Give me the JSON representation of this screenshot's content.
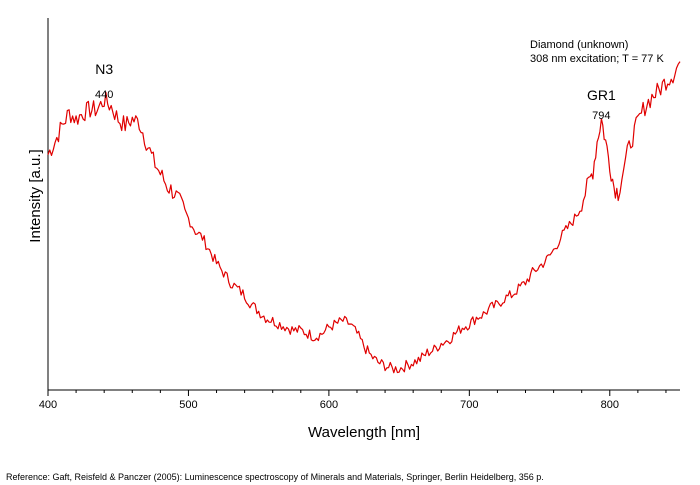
{
  "chart_data": {
    "type": "line",
    "title": "",
    "info_lines": [
      "Diamond (unknown)",
      "308 nm excitation; T = 77 K"
    ],
    "xlabel": "Wavelength [nm]",
    "ylabel": "Intensity [a.u.]",
    "xlim": [
      400,
      850
    ],
    "ylim": [
      0,
      100
    ],
    "x_ticks": [
      400,
      500,
      600,
      700,
      800
    ],
    "grid": false,
    "y_tick_labels": false,
    "series": [
      {
        "color": "#e00000",
        "x": [
          400,
          405,
          410,
          415,
          420,
          425,
          430,
          435,
          440,
          445,
          450,
          455,
          460,
          465,
          470,
          475,
          480,
          485,
          490,
          495,
          500,
          505,
          510,
          515,
          520,
          525,
          530,
          535,
          540,
          545,
          550,
          555,
          560,
          565,
          570,
          575,
          580,
          585,
          590,
          595,
          600,
          605,
          610,
          615,
          620,
          625,
          630,
          635,
          640,
          645,
          650,
          655,
          660,
          665,
          670,
          675,
          680,
          685,
          690,
          695,
          700,
          705,
          710,
          715,
          720,
          725,
          730,
          735,
          740,
          745,
          750,
          755,
          760,
          765,
          770,
          775,
          780,
          785,
          788,
          791,
          794,
          797,
          800,
          803,
          806,
          810,
          815,
          820,
          825,
          830,
          835,
          840,
          845,
          850
        ],
        "y": [
          68,
          72,
          77,
          81,
          79,
          81,
          82,
          82,
          85,
          83,
          79,
          77,
          79,
          78,
          72,
          66,
          62,
          58,
          56,
          52,
          48,
          44,
          42,
          38,
          34,
          31,
          28,
          26,
          24,
          21,
          19,
          17,
          16,
          15,
          14,
          13,
          13,
          12,
          11,
          12,
          14,
          15,
          16,
          15,
          12,
          8,
          5,
          3,
          2,
          1,
          1,
          2,
          3,
          4,
          6,
          7,
          9,
          10,
          12,
          14,
          15,
          17,
          18,
          20,
          21,
          23,
          24,
          26,
          28,
          31,
          33,
          35,
          38,
          42,
          45,
          48,
          53,
          59,
          63,
          72,
          79,
          72,
          65,
          58,
          56,
          64,
          72,
          78,
          83,
          86,
          88,
          91,
          93,
          97
        ]
      }
    ],
    "annotations": [
      {
        "label": "N3",
        "value": "440",
        "x": 440
      },
      {
        "label": "GR1",
        "value": "794",
        "x": 794
      }
    ]
  },
  "reference": "Reference: Gaft, Reisfeld & Panczer (2005): Luminescence spectroscopy of Minerals and Materials, Springer, Berlin Heidelberg, 356 p."
}
